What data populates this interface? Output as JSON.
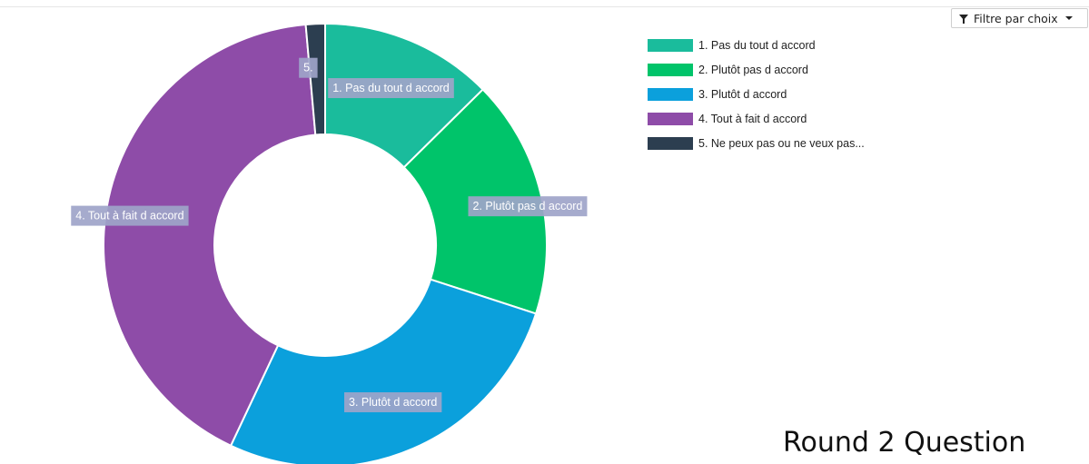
{
  "filter": {
    "label": "Filtre par choix",
    "funnel_icon": "funnel-icon",
    "caret_icon": "caret-down-icon"
  },
  "footer": {
    "text": "Round 2 Question"
  },
  "chart_data": {
    "type": "pie",
    "donut": true,
    "title": "",
    "legend_position": "top-right",
    "categories": [
      "1. Pas du tout d accord",
      "2. Plutôt pas d accord",
      "3. Plutôt d accord",
      "4. Tout à fait d accord",
      "5. Ne peux pas ou ne veux pas..."
    ],
    "slice_labels": [
      "1. Pas du tout d accord",
      "2. Plutôt pas d accord",
      "3. Plutôt d accord",
      "4. Tout à fait d accord",
      "5."
    ],
    "values": [
      12.6,
      17.4,
      27.0,
      41.6,
      1.4
    ],
    "colors": [
      "#1abc9c",
      "#00c46a",
      "#0ba0dc",
      "#8e4ca8",
      "#2c3e50"
    ]
  }
}
